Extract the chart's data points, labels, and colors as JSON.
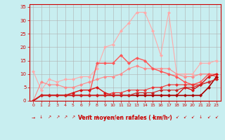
{
  "bg_color": "#c8eef0",
  "grid_color": "#b0b0b0",
  "xlabel": "Vent moyen/en rafales ( km/h )",
  "ylabel_ticks": [
    0,
    5,
    10,
    15,
    20,
    25,
    30,
    35
  ],
  "xlim": [
    -0.5,
    23.5
  ],
  "ylim": [
    0,
    36
  ],
  "x": [
    0,
    1,
    2,
    3,
    4,
    5,
    6,
    7,
    8,
    9,
    10,
    11,
    12,
    13,
    14,
    15,
    16,
    17,
    18,
    19,
    20,
    21,
    22,
    23
  ],
  "series": [
    {
      "color": "#ffaaaa",
      "lw": 0.8,
      "values": [
        11,
        4,
        8,
        7,
        8,
        8,
        9,
        9,
        12,
        20,
        21,
        26,
        29,
        33,
        33,
        26,
        17,
        33,
        10,
        10,
        10,
        14,
        14,
        15
      ]
    },
    {
      "color": "#ff8888",
      "lw": 0.8,
      "values": [
        0,
        7,
        6,
        6,
        5,
        5,
        6,
        7,
        8,
        9,
        9,
        10,
        12,
        13,
        12,
        12,
        12,
        12,
        10,
        9,
        9,
        10,
        10,
        10
      ]
    },
    {
      "color": "#ff5555",
      "lw": 1.0,
      "values": [
        0,
        2,
        2,
        2,
        2,
        2,
        2,
        2,
        14,
        14,
        14,
        17,
        14,
        16,
        15,
        12,
        11,
        10,
        9,
        7,
        6,
        7,
        10,
        9
      ]
    },
    {
      "color": "#dd1111",
      "lw": 1.0,
      "values": [
        0,
        2,
        2,
        2,
        2,
        3,
        4,
        4,
        5,
        3,
        2,
        2,
        2,
        2,
        2,
        2,
        2,
        2,
        2,
        5,
        4,
        6,
        9,
        10
      ]
    },
    {
      "color": "#aa0000",
      "lw": 1.2,
      "values": [
        0,
        2,
        2,
        2,
        2,
        2,
        2,
        2,
        2,
        2,
        2,
        2,
        2,
        2,
        2,
        2,
        2,
        2,
        2,
        2,
        2,
        2,
        5,
        9
      ]
    },
    {
      "color": "#ee3333",
      "lw": 0.8,
      "values": [
        0,
        2,
        2,
        2,
        2,
        2,
        2,
        2,
        2,
        2,
        3,
        3,
        4,
        4,
        4,
        5,
        5,
        6,
        6,
        6,
        6,
        6,
        7,
        8
      ]
    },
    {
      "color": "#cc2222",
      "lw": 0.8,
      "values": [
        0,
        2,
        2,
        2,
        2,
        2,
        2,
        2,
        2,
        2,
        2,
        2,
        2,
        3,
        3,
        3,
        4,
        4,
        4,
        5,
        5,
        6,
        7,
        8
      ]
    }
  ],
  "arrow_directions": [
    "e",
    "s",
    "ne",
    "ne",
    "ne",
    "ne",
    "ne",
    "n",
    "s",
    "sw",
    "sw",
    "sw",
    "sw",
    "sw",
    "sw",
    "sw",
    "sw",
    "sw",
    "sw",
    "sw",
    "sw",
    "s",
    "sw",
    "sw"
  ],
  "marker_size": 2.5
}
